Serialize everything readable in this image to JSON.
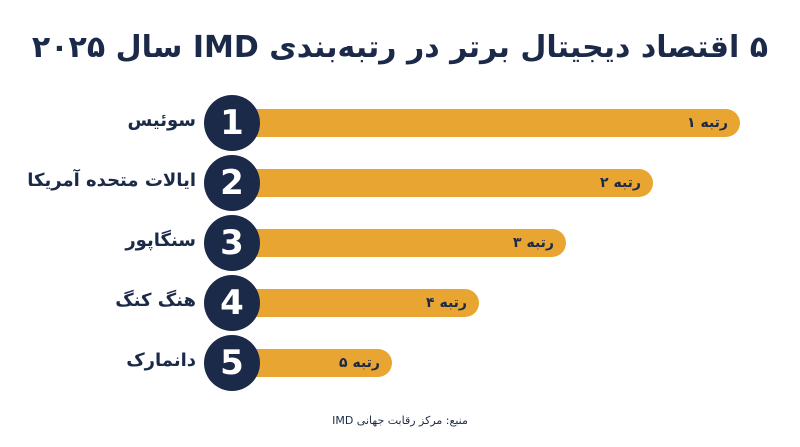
{
  "title": "۵ اقتصاد دیجیتال برتر در رتبه‌بندی IMD سال ۲۰۲۵",
  "source": "منبع: مرکز رقابت جهانی IMD",
  "colors": {
    "bar": "#e9a532",
    "badge": "#1c2a4a",
    "text": "#1c2a4a"
  },
  "chart_data": {
    "type": "bar",
    "orientation": "horizontal",
    "title": "۵ اقتصاد دیجیتال برتر در رتبه‌بندی IMD سال ۲۰۲۵",
    "categories": [
      "سوئیس",
      "ایالات متحده آمریکا",
      "سنگاپور",
      "هنگ کنگ",
      "دانمارک"
    ],
    "ranks": [
      "1",
      "2",
      "3",
      "4",
      "5"
    ],
    "bar_labels": [
      "رتبه ۱",
      "رتبه ۲",
      "رتبه ۳",
      "رتبه ۴",
      "رتبه ۵"
    ],
    "values": [
      1,
      2,
      3,
      4,
      5
    ],
    "grid": false,
    "legend": "none"
  }
}
